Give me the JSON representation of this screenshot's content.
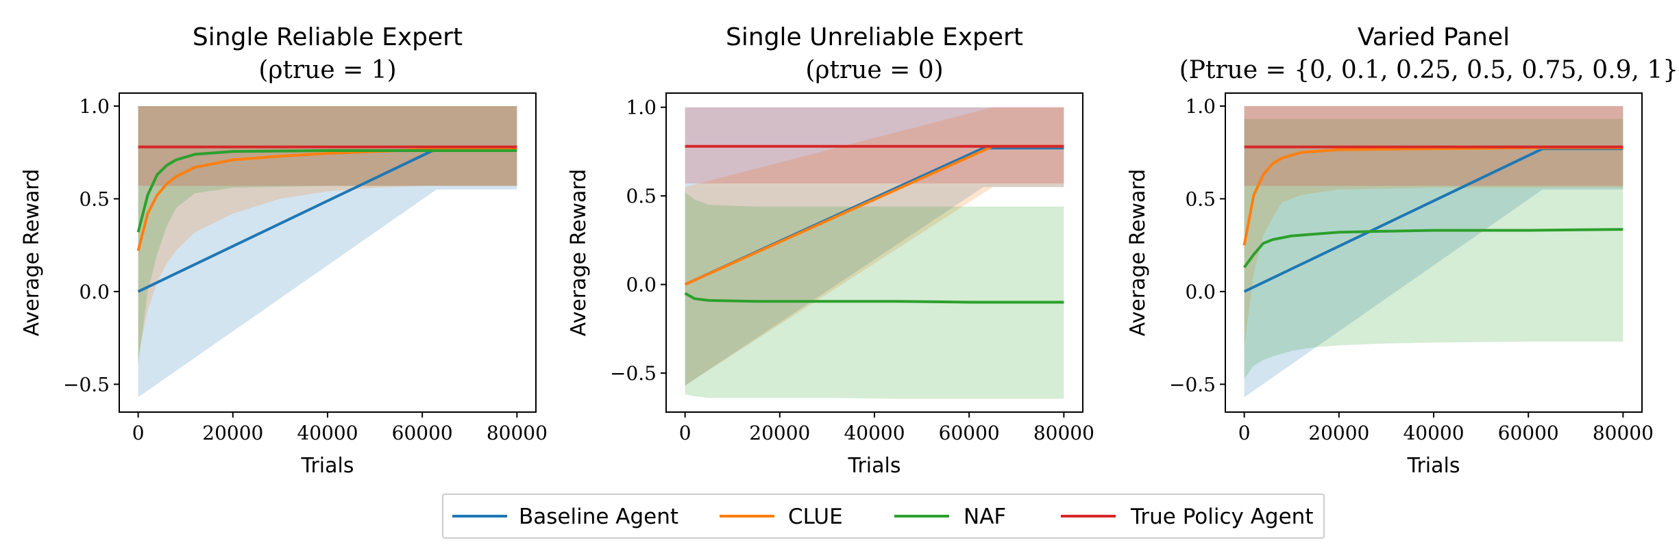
{
  "chart_data": [
    {
      "type": "line",
      "title": "Single Reliable Expert",
      "subtitle": "(ρtrue = 1)",
      "xlabel": "Trials",
      "ylabel": "Average Reward",
      "xlim": [
        -4000,
        84000
      ],
      "ylim": [
        -0.65,
        1.07
      ],
      "xticks": [
        0,
        20000,
        40000,
        60000,
        80000
      ],
      "yticks": [
        -0.5,
        0.0,
        0.5,
        1.0
      ],
      "series": [
        {
          "name": "Baseline Agent",
          "color": "#1f77b4",
          "x": [
            0,
            63000,
            80000
          ],
          "y": [
            0.0,
            0.77,
            0.77
          ],
          "band_upper": [
            1.0,
            1.0,
            1.0
          ],
          "band_lower": [
            -0.57,
            0.55,
            0.55
          ]
        },
        {
          "name": "CLUE",
          "color": "#ff7f0e",
          "x": [
            0,
            2000,
            4000,
            6000,
            8000,
            12000,
            20000,
            30000,
            40000,
            50000,
            60000,
            70000,
            80000
          ],
          "y": [
            0.22,
            0.42,
            0.52,
            0.58,
            0.62,
            0.67,
            0.71,
            0.73,
            0.745,
            0.755,
            0.765,
            0.77,
            0.77
          ],
          "band_upper": [
            1.0,
            1.0,
            1.0,
            1.0,
            1.0,
            1.0,
            1.0,
            1.0,
            1.0,
            1.0,
            1.0,
            1.0,
            1.0
          ],
          "band_lower": [
            -0.35,
            -0.1,
            0.05,
            0.15,
            0.22,
            0.32,
            0.42,
            0.5,
            0.54,
            0.56,
            0.57,
            0.57,
            0.57
          ]
        },
        {
          "name": "NAF",
          "color": "#2ca02c",
          "x": [
            0,
            2000,
            4000,
            6000,
            8000,
            12000,
            20000,
            40000,
            60000,
            80000
          ],
          "y": [
            0.32,
            0.52,
            0.63,
            0.68,
            0.71,
            0.74,
            0.755,
            0.76,
            0.76,
            0.76
          ],
          "band_upper": [
            1.0,
            1.0,
            1.0,
            1.0,
            1.0,
            1.0,
            1.0,
            1.0,
            1.0,
            1.0
          ],
          "band_lower": [
            -0.4,
            0.0,
            0.2,
            0.35,
            0.45,
            0.53,
            0.56,
            0.57,
            0.57,
            0.57
          ]
        },
        {
          "name": "True Policy Agent",
          "color": "#d62728",
          "x": [
            0,
            80000
          ],
          "y": [
            0.78,
            0.78
          ],
          "band_upper": [
            1.0,
            1.0
          ],
          "band_lower": [
            0.57,
            0.57
          ]
        }
      ]
    },
    {
      "type": "line",
      "title": "Single Unreliable Expert",
      "subtitle": "(ρtrue = 0)",
      "xlabel": "Trials",
      "ylabel": "Average Reward",
      "xlim": [
        -4000,
        84000
      ],
      "ylim": [
        -0.72,
        1.08
      ],
      "xticks": [
        0,
        20000,
        40000,
        60000,
        80000
      ],
      "yticks": [
        -0.5,
        0.0,
        0.5,
        1.0
      ],
      "series": [
        {
          "name": "Baseline Agent",
          "color": "#1f77b4",
          "x": [
            0,
            63000,
            80000
          ],
          "y": [
            0.0,
            0.77,
            0.77
          ],
          "band_upper": [
            1.0,
            1.0,
            1.0
          ],
          "band_lower": [
            -0.57,
            0.55,
            0.55
          ]
        },
        {
          "name": "CLUE",
          "color": "#ff7f0e",
          "x": [
            0,
            65000,
            80000
          ],
          "y": [
            0.0,
            0.78,
            0.78
          ],
          "band_upper": [
            0.55,
            1.0,
            1.0
          ],
          "band_lower": [
            -0.57,
            0.55,
            0.55
          ]
        },
        {
          "name": "NAF",
          "color": "#2ca02c",
          "x": [
            0,
            2000,
            5000,
            15000,
            30000,
            45000,
            60000,
            80000
          ],
          "y": [
            -0.05,
            -0.08,
            -0.09,
            -0.095,
            -0.095,
            -0.095,
            -0.1,
            -0.1
          ],
          "band_upper": [
            0.52,
            0.48,
            0.45,
            0.44,
            0.44,
            0.44,
            0.44,
            0.44
          ],
          "band_lower": [
            -0.62,
            -0.63,
            -0.64,
            -0.64,
            -0.64,
            -0.645,
            -0.645,
            -0.645
          ]
        },
        {
          "name": "True Policy Agent",
          "color": "#d62728",
          "x": [
            0,
            80000
          ],
          "y": [
            0.78,
            0.78
          ],
          "band_upper": [
            1.0,
            1.0
          ],
          "band_lower": [
            0.57,
            0.57
          ]
        }
      ]
    },
    {
      "type": "line",
      "title": "Varied Panel",
      "subtitle": "(Ptrue = {0, 0.1, 0.25, 0.5, 0.75, 0.9, 1})",
      "xlabel": "Trials",
      "ylabel": "Average Reward",
      "xlim": [
        -4000,
        84000
      ],
      "ylim": [
        -0.65,
        1.07
      ],
      "xticks": [
        0,
        20000,
        40000,
        60000,
        80000
      ],
      "yticks": [
        -0.5,
        0.0,
        0.5,
        1.0
      ],
      "series": [
        {
          "name": "Baseline Agent",
          "color": "#1f77b4",
          "x": [
            0,
            63000,
            80000
          ],
          "y": [
            0.0,
            0.77,
            0.77
          ],
          "band_upper": [
            1.0,
            1.0,
            1.0
          ],
          "band_lower": [
            -0.57,
            0.55,
            0.55
          ]
        },
        {
          "name": "CLUE",
          "color": "#ff7f0e",
          "x": [
            0,
            2000,
            4000,
            6000,
            8000,
            12000,
            20000,
            40000,
            60000,
            80000
          ],
          "y": [
            0.25,
            0.52,
            0.63,
            0.69,
            0.72,
            0.75,
            0.765,
            0.77,
            0.775,
            0.775
          ],
          "band_upper": [
            1.0,
            1.0,
            1.0,
            1.0,
            1.0,
            1.0,
            1.0,
            1.0,
            1.0,
            1.0
          ],
          "band_lower": [
            -0.3,
            0.1,
            0.3,
            0.4,
            0.48,
            0.52,
            0.55,
            0.56,
            0.56,
            0.56
          ]
        },
        {
          "name": "NAF",
          "color": "#2ca02c",
          "x": [
            0,
            2000,
            4000,
            6000,
            10000,
            15000,
            20000,
            30000,
            40000,
            60000,
            80000
          ],
          "y": [
            0.13,
            0.2,
            0.26,
            0.28,
            0.3,
            0.31,
            0.32,
            0.325,
            0.33,
            0.33,
            0.335
          ],
          "band_upper": [
            0.93,
            0.93,
            0.93,
            0.93,
            0.93,
            0.93,
            0.93,
            0.93,
            0.93,
            0.93,
            0.93
          ],
          "band_lower": [
            -0.47,
            -0.4,
            -0.37,
            -0.35,
            -0.32,
            -0.3,
            -0.29,
            -0.28,
            -0.275,
            -0.27,
            -0.27
          ]
        },
        {
          "name": "True Policy Agent",
          "color": "#d62728",
          "x": [
            0,
            80000
          ],
          "y": [
            0.78,
            0.78
          ],
          "band_upper": [
            1.0,
            1.0
          ],
          "band_lower": [
            0.57,
            0.57
          ]
        }
      ]
    }
  ],
  "legend": {
    "placement": "bottom-center",
    "entries": [
      {
        "label": "Baseline Agent",
        "color": "#1f77b4"
      },
      {
        "label": "CLUE",
        "color": "#ff7f0e"
      },
      {
        "label": "NAF",
        "color": "#2ca02c"
      },
      {
        "label": "True Policy Agent",
        "color": "#d62728"
      }
    ]
  }
}
